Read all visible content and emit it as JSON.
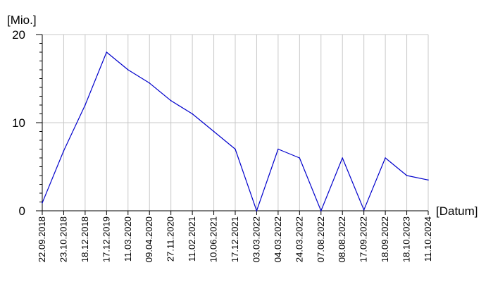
{
  "chart_data": {
    "type": "line",
    "ylabel": "[Mio.]",
    "xlabel": "[Datum]",
    "ylim": [
      0,
      20
    ],
    "yticks": [
      "0",
      "10",
      "20"
    ],
    "categories": [
      "22.09.2018",
      "23.10.2018",
      "18.12.2018",
      "17.12.2019",
      "11.03.2020",
      "09.04.2020",
      "27.11.2020",
      "11.02.2021",
      "10.06.2021",
      "17.12.2021",
      "03.03.2022",
      "04.03.2022",
      "24.03.2022",
      "07.08.2022",
      "08.08.2022",
      "17.09.2022",
      "18.09.2022",
      "18.10.2023",
      "11.10.2024"
    ],
    "series": [
      {
        "values": [
          0.9,
          6.8,
          12.0,
          18.0,
          16.0,
          14.5,
          12.5,
          11.0,
          9.0,
          7.0,
          0.0,
          7.0,
          6.0,
          0.0,
          6.0,
          0.1,
          6.0,
          4.0,
          3.5
        ]
      }
    ],
    "grid": true,
    "colors": {
      "line": "#0000cc",
      "grid": "#c8c8c8",
      "axis": "#000000"
    }
  }
}
